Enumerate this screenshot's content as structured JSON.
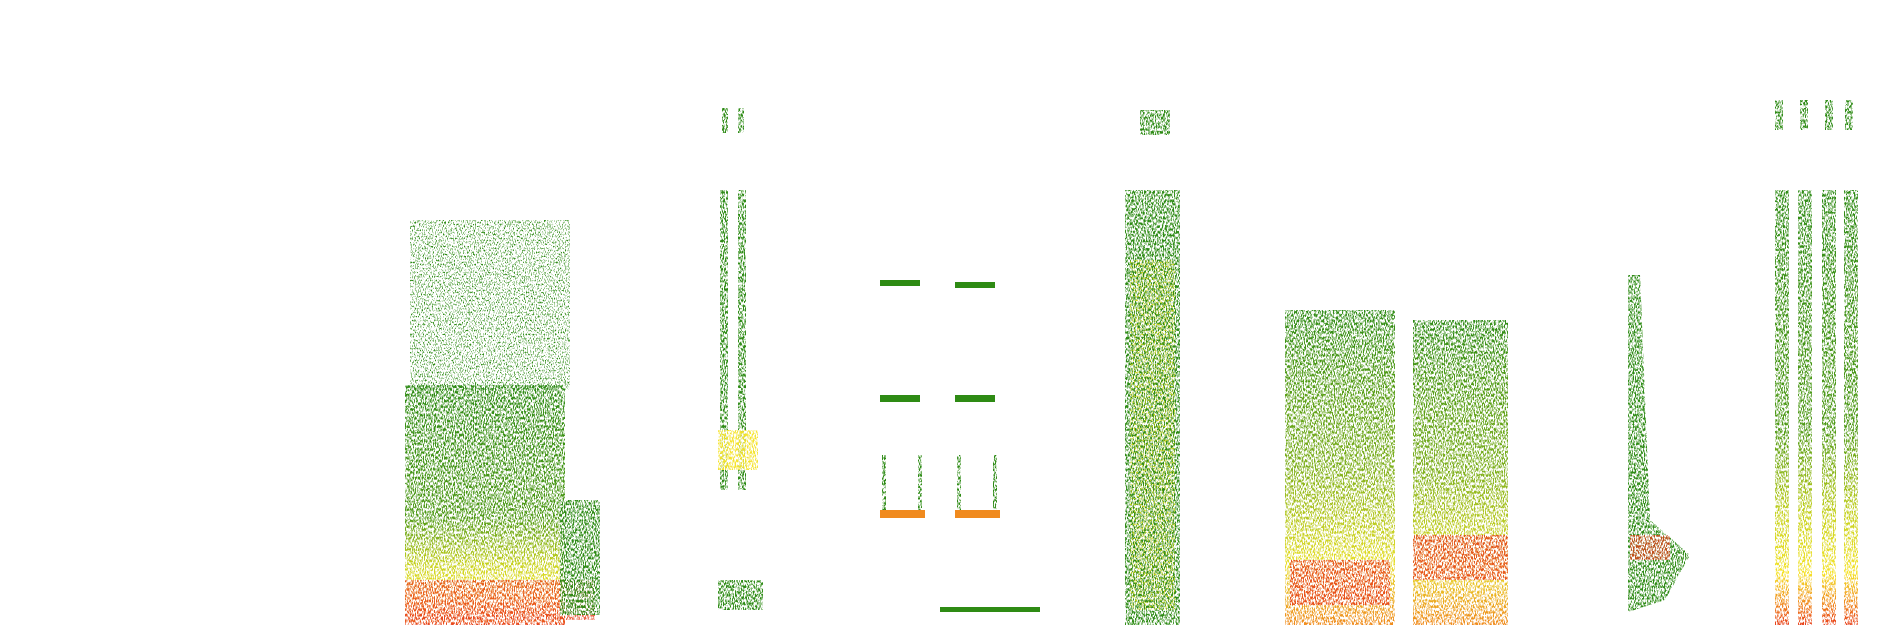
{
  "image": {
    "kind": "spectrogram",
    "background": "#ffffff",
    "palette": {
      "low": "#2e8b14",
      "mid_low": "#6aa61a",
      "mid": "#c8d21e",
      "mid_high": "#f5e32a",
      "high": "#f08a1e",
      "peak": "#e8401a"
    },
    "sound_events": [
      {
        "name": "broadband-noise-burst",
        "shape": "wide-block"
      },
      {
        "name": "harmonic-tick-pair",
        "shape": "thin-dual-column"
      },
      {
        "name": "tonal-double-pulse",
        "shape": "paired-tones"
      },
      {
        "name": "tall-broadband-column",
        "shape": "tall-column"
      },
      {
        "name": "twin-broadband-blocks",
        "shape": "two-blocks"
      },
      {
        "name": "short-chirp",
        "shape": "narrow-wedge"
      },
      {
        "name": "multi-pulse-train",
        "shape": "four-columns"
      }
    ]
  }
}
